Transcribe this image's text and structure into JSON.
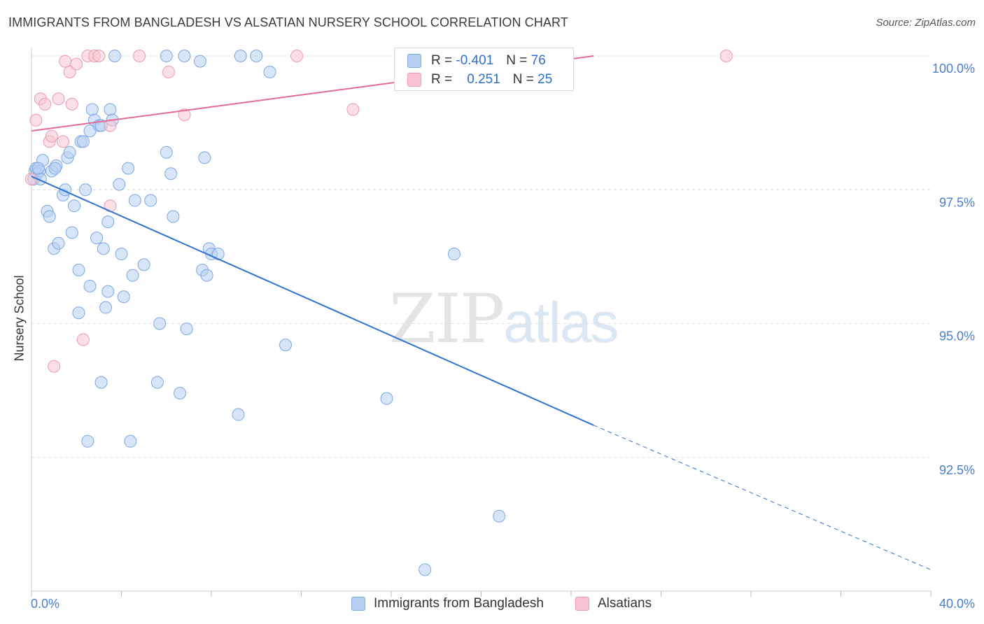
{
  "header": {
    "title": "IMMIGRANTS FROM BANGLADESH VS ALSATIAN NURSERY SCHOOL CORRELATION CHART",
    "source": "Source: ZipAtlas.com"
  },
  "watermark": {
    "zip": "ZIP",
    "atlas": "atlas"
  },
  "stats": {
    "rows": [
      {
        "r_label": "R =",
        "r_value": "-0.401",
        "n_label": "N =",
        "n_value": "76"
      },
      {
        "r_label": "R =",
        "r_value": "0.251",
        "n_label": "N =",
        "n_value": "25"
      }
    ]
  },
  "colors": {
    "blue_fill": "#b7d0f2",
    "blue_stroke": "#7ea8e0",
    "blue_line": "#2f72d0",
    "pink_fill": "#f8c4d2",
    "pink_stroke": "#eb9ab3",
    "pink_line": "#e36b95",
    "grid": "#dddddd",
    "tick_text": "#4a7ec9"
  },
  "chart_data": {
    "type": "scatter",
    "title": "IMMIGRANTS FROM BANGLADESH VS ALSATIAN NURSERY SCHOOL CORRELATION CHART",
    "xlabel": "",
    "ylabel": "Nursery School",
    "xlim": [
      0,
      40
    ],
    "ylim": [
      90.0,
      100.5
    ],
    "x_tick_labels": [
      "0.0%",
      "40.0%"
    ],
    "y_ticks": [
      92.5,
      95.0,
      97.5,
      100.0
    ],
    "y_tick_labels": [
      "92.5%",
      "95.0%",
      "97.5%",
      "100.0%"
    ],
    "grid": "horizontal dashed",
    "legend_position": "bottom",
    "series": [
      {
        "name": "Immigrants from Bangladesh",
        "color": "#b7d0f2",
        "points": [
          [
            0.1,
            97.7
          ],
          [
            0.15,
            97.85
          ],
          [
            0.2,
            97.9
          ],
          [
            0.25,
            97.8
          ],
          [
            0.35,
            97.85
          ],
          [
            0.4,
            97.7
          ],
          [
            0.5,
            98.05
          ],
          [
            0.7,
            97.1
          ],
          [
            0.8,
            97.0
          ],
          [
            0.9,
            97.85
          ],
          [
            1.0,
            96.4
          ],
          [
            1.1,
            97.95
          ],
          [
            1.2,
            96.5
          ],
          [
            1.4,
            97.4
          ],
          [
            1.5,
            97.5
          ],
          [
            1.6,
            98.1
          ],
          [
            1.7,
            98.2
          ],
          [
            1.8,
            96.7
          ],
          [
            1.9,
            97.2
          ],
          [
            2.1,
            95.2
          ],
          [
            2.1,
            96.0
          ],
          [
            2.2,
            98.4
          ],
          [
            2.3,
            98.4
          ],
          [
            2.4,
            97.5
          ],
          [
            2.5,
            92.8
          ],
          [
            2.6,
            95.7
          ],
          [
            2.6,
            98.6
          ],
          [
            2.7,
            99.0
          ],
          [
            2.8,
            98.8
          ],
          [
            2.9,
            96.6
          ],
          [
            3.0,
            98.7
          ],
          [
            3.1,
            98.7
          ],
          [
            3.1,
            93.9
          ],
          [
            3.2,
            96.4
          ],
          [
            3.3,
            95.3
          ],
          [
            3.4,
            95.6
          ],
          [
            3.4,
            96.9
          ],
          [
            3.5,
            99.0
          ],
          [
            3.6,
            98.8
          ],
          [
            3.7,
            100.0
          ],
          [
            3.9,
            97.6
          ],
          [
            4.0,
            96.3
          ],
          [
            4.1,
            95.5
          ],
          [
            4.3,
            97.9
          ],
          [
            4.4,
            92.8
          ],
          [
            4.5,
            95.9
          ],
          [
            4.6,
            97.3
          ],
          [
            5.0,
            96.1
          ],
          [
            5.3,
            97.3
          ],
          [
            5.6,
            93.9
          ],
          [
            5.7,
            95.0
          ],
          [
            6.0,
            98.2
          ],
          [
            6.0,
            100.0
          ],
          [
            6.2,
            97.8
          ],
          [
            6.3,
            97.0
          ],
          [
            6.6,
            93.7
          ],
          [
            6.8,
            100.0
          ],
          [
            6.9,
            94.9
          ],
          [
            7.5,
            99.9
          ],
          [
            7.6,
            96.0
          ],
          [
            7.7,
            98.1
          ],
          [
            7.8,
            95.9
          ],
          [
            7.9,
            96.4
          ],
          [
            8.0,
            96.3
          ],
          [
            8.3,
            96.3
          ],
          [
            9.2,
            93.3
          ],
          [
            9.3,
            100.0
          ],
          [
            10.0,
            100.0
          ],
          [
            10.6,
            99.7
          ],
          [
            11.3,
            94.6
          ],
          [
            15.8,
            93.6
          ],
          [
            18.8,
            96.3
          ],
          [
            17.5,
            90.4
          ],
          [
            20.8,
            91.4
          ],
          [
            0.3,
            97.9
          ],
          [
            1.05,
            97.9
          ]
        ]
      },
      {
        "name": "Alsatians",
        "color": "#f8c4d2",
        "points": [
          [
            0.0,
            97.7
          ],
          [
            0.2,
            98.8
          ],
          [
            0.4,
            99.2
          ],
          [
            0.6,
            99.1
          ],
          [
            0.8,
            98.4
          ],
          [
            0.9,
            98.5
          ],
          [
            1.0,
            94.2
          ],
          [
            1.2,
            99.2
          ],
          [
            1.4,
            98.4
          ],
          [
            1.5,
            99.9
          ],
          [
            1.7,
            99.7
          ],
          [
            1.8,
            99.1
          ],
          [
            2.0,
            99.85
          ],
          [
            2.3,
            94.7
          ],
          [
            2.5,
            100.0
          ],
          [
            2.8,
            100.0
          ],
          [
            3.0,
            100.0
          ],
          [
            3.5,
            98.7
          ],
          [
            3.5,
            97.2
          ],
          [
            4.8,
            100.0
          ],
          [
            6.1,
            99.7
          ],
          [
            6.8,
            98.9
          ],
          [
            11.8,
            100.0
          ],
          [
            14.3,
            99.0
          ],
          [
            30.9,
            100.0
          ]
        ]
      }
    ],
    "trend_lines": [
      {
        "series": "Immigrants from Bangladesh",
        "solid_from": [
          0.0,
          97.75
        ],
        "solid_to": [
          25.0,
          93.1
        ],
        "dashed_to": [
          40.0,
          90.4
        ]
      },
      {
        "series": "Alsatians",
        "from": [
          0.0,
          98.6
        ],
        "to": [
          25.0,
          100.0
        ]
      }
    ]
  },
  "legend": {
    "items": [
      {
        "label": "Immigrants from Bangladesh"
      },
      {
        "label": "Alsatians"
      }
    ]
  }
}
